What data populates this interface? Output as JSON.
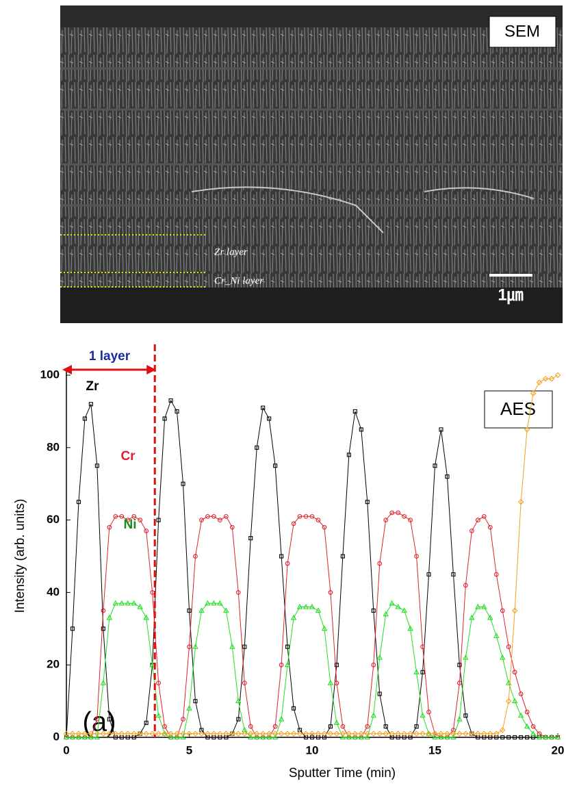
{
  "image": {
    "label": "SEM",
    "layers": [
      "Zr layer",
      "Cr_Ni layer"
    ],
    "scale_bar": "1㎛"
  },
  "chart_data": {
    "type": "line",
    "x": [
      0,
      0.25,
      0.5,
      0.75,
      1,
      1.25,
      1.5,
      1.75,
      2,
      2.25,
      2.5,
      2.75,
      3,
      3.25,
      3.5,
      3.75,
      4,
      4.25,
      4.5,
      4.75,
      5,
      5.25,
      5.5,
      5.75,
      6,
      6.25,
      6.5,
      6.75,
      7,
      7.25,
      7.5,
      7.75,
      8,
      8.25,
      8.5,
      8.75,
      9,
      9.25,
      9.5,
      9.75,
      10,
      10.25,
      10.5,
      10.75,
      11,
      11.25,
      11.5,
      11.75,
      12,
      12.25,
      12.5,
      12.75,
      13,
      13.25,
      13.5,
      13.75,
      14,
      14.25,
      14.5,
      14.75,
      15,
      15.25,
      15.5,
      15.75,
      16,
      16.25,
      16.5,
      16.75,
      17,
      17.25,
      17.5,
      17.75,
      18,
      18.25,
      18.5,
      18.75,
      19,
      19.25,
      19.5,
      19.75,
      20
    ],
    "series": [
      {
        "name": "Zr",
        "color": "#000000",
        "marker": "square",
        "values": [
          0,
          30,
          65,
          88,
          92,
          75,
          30,
          5,
          0,
          0,
          0,
          0,
          1,
          4,
          20,
          60,
          88,
          93,
          90,
          70,
          35,
          10,
          2,
          0,
          0,
          0,
          0,
          1,
          5,
          25,
          55,
          80,
          91,
          88,
          75,
          50,
          25,
          8,
          2,
          0,
          0,
          0,
          0,
          3,
          20,
          50,
          78,
          90,
          85,
          65,
          35,
          12,
          3,
          0,
          0,
          0,
          0,
          3,
          18,
          45,
          75,
          85,
          72,
          45,
          20,
          6,
          1,
          0,
          0,
          0,
          0,
          0,
          0,
          0,
          0,
          0,
          0,
          0,
          0,
          0,
          0
        ]
      },
      {
        "name": "Cr",
        "color": "#e0202a",
        "marker": "circle",
        "values": [
          0,
          0,
          0,
          0,
          0,
          5,
          35,
          58,
          61,
          61,
          60,
          61,
          60,
          57,
          40,
          15,
          3,
          0,
          0,
          5,
          25,
          50,
          60,
          61,
          61,
          60,
          61,
          58,
          40,
          15,
          3,
          0,
          0,
          0,
          3,
          20,
          48,
          59,
          61,
          61,
          61,
          60,
          58,
          40,
          15,
          3,
          0,
          0,
          0,
          3,
          20,
          48,
          60,
          62,
          62,
          61,
          60,
          50,
          25,
          7,
          1,
          0,
          0,
          2,
          15,
          42,
          57,
          60,
          61,
          58,
          45,
          35,
          25,
          18,
          12,
          7,
          3,
          1,
          0,
          0,
          0
        ]
      },
      {
        "name": "Ni",
        "color": "#22dd22",
        "marker": "triangle",
        "values": [
          0,
          0,
          0,
          0,
          0,
          0,
          15,
          33,
          37,
          37,
          37,
          37,
          36,
          33,
          20,
          6,
          1,
          0,
          0,
          0,
          8,
          25,
          35,
          37,
          37,
          37,
          35,
          25,
          10,
          2,
          0,
          0,
          0,
          0,
          0,
          5,
          20,
          33,
          36,
          36,
          36,
          35,
          30,
          15,
          4,
          0,
          0,
          0,
          0,
          0,
          6,
          22,
          34,
          37,
          36,
          35,
          30,
          18,
          6,
          1,
          0,
          0,
          0,
          0,
          5,
          22,
          33,
          36,
          36,
          33,
          28,
          22,
          15,
          10,
          6,
          3,
          1,
          0,
          0,
          0,
          0
        ]
      },
      {
        "color": "#f0a020",
        "marker": "diamond",
        "values": [
          1,
          1,
          1,
          1,
          1,
          1,
          1,
          1,
          1,
          1,
          1,
          1,
          1,
          1,
          1,
          1,
          1,
          1,
          1,
          1,
          1,
          1,
          1,
          1,
          1,
          1,
          1,
          1,
          1,
          1,
          1,
          1,
          1,
          1,
          1,
          1,
          1,
          1,
          1,
          1,
          1,
          1,
          1,
          1,
          1,
          1,
          1,
          1,
          1,
          1,
          1,
          1,
          1,
          1,
          1,
          1,
          1,
          1,
          1,
          1,
          1,
          1,
          1,
          1,
          1,
          1,
          1,
          1,
          1,
          1,
          1,
          2,
          10,
          35,
          65,
          85,
          95,
          98,
          99,
          99,
          100
        ]
      }
    ],
    "xlabel": "Sputter Time (min)",
    "ylabel": "Intensity (arb. units)",
    "xlim": [
      0,
      20
    ],
    "ylim": [
      0,
      100
    ],
    "xticks": [
      0,
      5,
      10,
      15,
      20
    ],
    "yticks": [
      0,
      20,
      40,
      60,
      80,
      100
    ],
    "layer_boundary": 3.6,
    "layer_label": "1 layer",
    "method_label": "AES",
    "panel_label": "(a)"
  }
}
